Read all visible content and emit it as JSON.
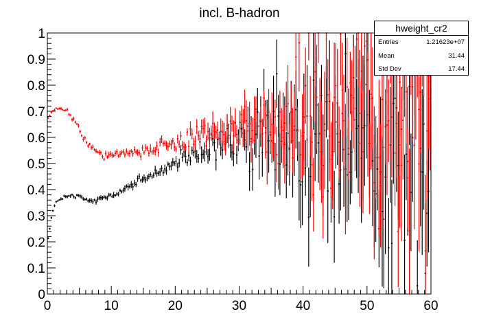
{
  "chart_data": {
    "type": "line",
    "title": "incl. B-hadron",
    "xlabel": "",
    "ylabel": "",
    "xlim": [
      0,
      60
    ],
    "ylim": [
      0,
      1
    ],
    "x_ticks": [
      "0",
      "10",
      "20",
      "30",
      "40",
      "50",
      "60"
    ],
    "y_ticks": [
      "0",
      "0.1",
      "0.2",
      "0.3",
      "0.4",
      "0.5",
      "0.6",
      "0.7",
      "0.8",
      "0.9",
      "1"
    ],
    "grid": false,
    "legend": "none",
    "bin_width": 0.25,
    "series": [
      {
        "color": "#000000",
        "x": [
          0.25,
          0.5,
          1,
          1.5,
          2,
          3,
          4,
          5,
          6,
          7,
          8,
          9,
          10,
          11,
          12,
          13,
          14,
          15,
          16,
          17,
          18,
          19,
          20,
          21,
          22,
          23,
          24,
          25,
          26,
          27,
          28,
          29,
          30,
          32,
          34,
          36,
          38,
          40,
          42,
          44,
          46,
          48,
          50,
          52,
          54,
          56,
          58,
          60
        ],
        "y": [
          0.22,
          0.28,
          0.33,
          0.355,
          0.365,
          0.372,
          0.375,
          0.37,
          0.36,
          0.356,
          0.362,
          0.37,
          0.38,
          0.392,
          0.403,
          0.415,
          0.425,
          0.44,
          0.45,
          0.465,
          0.48,
          0.49,
          0.5,
          0.512,
          0.522,
          0.53,
          0.54,
          0.552,
          0.56,
          0.565,
          0.575,
          0.58,
          0.585,
          0.585,
          0.585,
          0.585,
          0.585,
          0.585,
          0.585,
          0.585,
          0.585,
          0.585,
          0.585,
          0.585,
          0.585,
          0.585,
          0.585,
          0.585
        ]
      },
      {
        "color": "#ff0000",
        "x": [
          0,
          0.5,
          1,
          1.5,
          2,
          2.5,
          3,
          4,
          5,
          6,
          7,
          8,
          9,
          10,
          12,
          14,
          16,
          18,
          20,
          22,
          24,
          26,
          28,
          30,
          32,
          34,
          36,
          38,
          40,
          42,
          44,
          46,
          48,
          50,
          52,
          54,
          56,
          58,
          60
        ],
        "y": [
          0.67,
          0.69,
          0.703,
          0.708,
          0.709,
          0.706,
          0.7,
          0.675,
          0.63,
          0.585,
          0.555,
          0.542,
          0.535,
          0.535,
          0.538,
          0.542,
          0.555,
          0.57,
          0.588,
          0.603,
          0.615,
          0.625,
          0.634,
          0.642,
          0.648,
          0.654,
          0.66,
          0.664,
          0.668,
          0.673,
          0.678,
          0.683,
          0.688,
          0.693,
          0.698,
          0.702,
          0.706,
          0.71,
          0.712
        ]
      }
    ]
  },
  "stats_box": {
    "title": "hweight_cr2",
    "rows": [
      {
        "label": "Entries",
        "value": "1.21623e+07"
      },
      {
        "label": "Mean",
        "value": "31.44"
      },
      {
        "label": "Std Dev",
        "value": "17.44"
      }
    ]
  }
}
